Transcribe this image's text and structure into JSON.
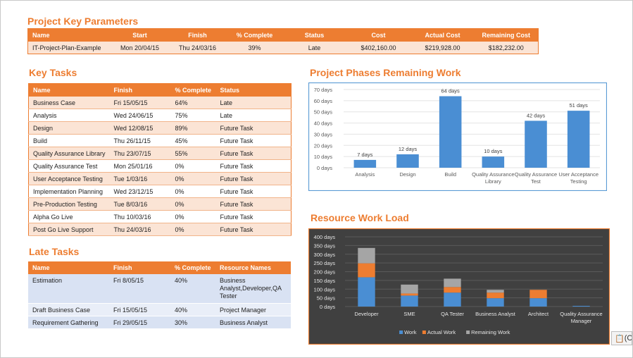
{
  "key_parameters": {
    "title": "Project Key Parameters",
    "headers": [
      "Name",
      "Start",
      "Finish",
      "% Complete",
      "Status",
      "Cost",
      "Actual Cost",
      "Remaining Cost"
    ],
    "row": [
      "IT-Project-Plan-Example",
      "Mon 20/04/15",
      "Thu 24/03/16",
      "39%",
      "Late",
      "$402,160.00",
      "$219,928.00",
      "$182,232.00"
    ]
  },
  "key_tasks": {
    "title": "Key Tasks",
    "headers": [
      "Name",
      "Finish",
      "% Complete",
      "Status"
    ],
    "rows": [
      [
        "Business Case",
        "Fri 15/05/15",
        "64%",
        "Late"
      ],
      [
        "Analysis",
        "Wed 24/06/15",
        "75%",
        "Late"
      ],
      [
        "Design",
        "Wed 12/08/15",
        "89%",
        "Future Task"
      ],
      [
        "Build",
        "Thu 26/11/15",
        "45%",
        "Future Task"
      ],
      [
        "Quality Assurance Library",
        "Thu 23/07/15",
        "55%",
        "Future Task"
      ],
      [
        "Quality Assurance Test",
        "Mon 25/01/16",
        "0%",
        "Future Task"
      ],
      [
        "User Acceptance Testing",
        "Tue 1/03/16",
        "0%",
        "Future Task"
      ],
      [
        "Implementation Planning",
        "Wed 23/12/15",
        "0%",
        "Future Task"
      ],
      [
        "Pre-Production Testing",
        "Tue 8/03/16",
        "0%",
        "Future Task"
      ],
      [
        "Alpha Go Live",
        "Thu 10/03/16",
        "0%",
        "Future Task"
      ],
      [
        "Post Go Live Support",
        "Thu 24/03/16",
        "0%",
        "Future Task"
      ]
    ]
  },
  "late_tasks": {
    "title": "Late Tasks",
    "headers": [
      "Name",
      "Finish",
      "% Complete",
      "Resource Names"
    ],
    "rows": [
      [
        "Estimation",
        "Fri 8/05/15",
        "40%",
        "Business Analyst,Developer,QA Tester"
      ],
      [
        "Draft Business Case",
        "Fri 15/05/15",
        "40%",
        "Project Manager"
      ],
      [
        "Requirement Gathering",
        "Fri 29/05/15",
        "30%",
        "Business Analyst"
      ]
    ]
  },
  "chart_data": [
    {
      "type": "bar",
      "title": "Project Phases Remaining Work",
      "categories": [
        "Analysis",
        "Design",
        "Build",
        "Quality Assurance Library",
        "Quality Assurance Test",
        "User Acceptance Testing"
      ],
      "category_lines": [
        [
          "Analysis"
        ],
        [
          "Design"
        ],
        [
          "Build"
        ],
        [
          "Quality Assurance",
          "Library"
        ],
        [
          "Quality Assurance",
          "Test"
        ],
        [
          "User Acceptance",
          "Testing"
        ]
      ],
      "values": [
        7,
        12,
        64,
        10,
        42,
        51
      ],
      "data_labels": [
        "7 days",
        "12 days",
        "64 days",
        "10 days",
        "42 days",
        "51 days"
      ],
      "yticks": [
        "0 days",
        "10 days",
        "20 days",
        "30 days",
        "40 days",
        "50 days",
        "60 days",
        "70 days"
      ],
      "ylim": [
        0,
        70
      ],
      "bar_color": "#4a8ed3",
      "grid": true,
      "legend": "none"
    },
    {
      "type": "bar",
      "stacked": true,
      "title": "Resource Work Load",
      "categories": [
        "Developer",
        "SME",
        "QA Tester",
        "Business Analyst",
        "Architect",
        "Quality Assurance Manager"
      ],
      "category_lines": [
        [
          "Developer"
        ],
        [
          "SME"
        ],
        [
          "QA Tester"
        ],
        [
          "Business Analyst"
        ],
        [
          "Architect"
        ],
        [
          "Quality Assurance",
          "Manager"
        ]
      ],
      "series": [
        {
          "name": "Work",
          "color": "#4a8ed3",
          "values": [
            168,
            63,
            80,
            48,
            48,
            0
          ]
        },
        {
          "name": "Actual Work",
          "color": "#ed7d31",
          "values": [
            80,
            12,
            32,
            32,
            48,
            0
          ]
        },
        {
          "name": "Remaining Work",
          "color": "#a5a5a5",
          "values": [
            88,
            51,
            48,
            16,
            0,
            0
          ]
        }
      ],
      "yticks": [
        "0 days",
        "50 days",
        "100 days",
        "150 days",
        "200 days",
        "250 days",
        "300 days",
        "350 days",
        "400 days"
      ],
      "ylim": [
        0,
        400
      ],
      "background": "#404040",
      "grid": true,
      "legend": "bottom-center"
    }
  ],
  "corner_icon": {
    "name": "paste-options-icon",
    "glyph": "📋",
    "text": "(C"
  }
}
